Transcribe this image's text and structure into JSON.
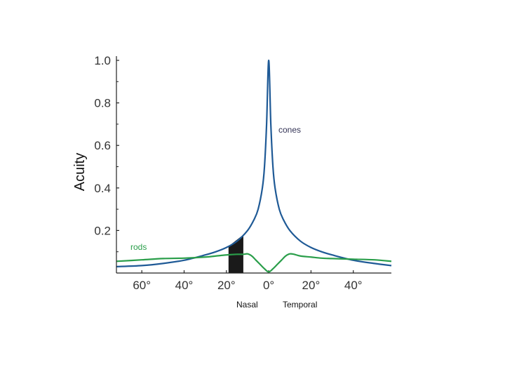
{
  "chart_data": {
    "type": "line",
    "ylabel": "Acuity",
    "xlabel": "",
    "ylim": [
      0,
      1.0
    ],
    "xlim": [
      -72,
      58
    ],
    "y_ticks": [
      {
        "value": 1.0,
        "label": "1.0"
      },
      {
        "value": 0.8,
        "label": "0.8"
      },
      {
        "value": 0.6,
        "label": "0.6"
      },
      {
        "value": 0.4,
        "label": "0.4"
      },
      {
        "value": 0.2,
        "label": "0.2"
      }
    ],
    "x_ticks": [
      {
        "value": -60,
        "label": "60°"
      },
      {
        "value": -40,
        "label": "40°"
      },
      {
        "value": -20,
        "label": "20°"
      },
      {
        "value": 0,
        "label": "0°"
      },
      {
        "value": 20,
        "label": "20°"
      },
      {
        "value": 40,
        "label": "40°"
      }
    ],
    "series": [
      {
        "name": "cones",
        "color": "#1f5a96",
        "x": [
          -72,
          -60,
          -50,
          -40,
          -30,
          -25,
          -20,
          -15,
          -10,
          -7,
          -5,
          -3,
          -2,
          -1,
          0,
          1,
          2,
          3,
          5,
          7,
          10,
          15,
          20,
          25,
          30,
          40,
          50,
          58
        ],
        "y": [
          0.03,
          0.035,
          0.045,
          0.06,
          0.085,
          0.1,
          0.12,
          0.15,
          0.2,
          0.25,
          0.3,
          0.4,
          0.5,
          0.7,
          1.0,
          0.7,
          0.5,
          0.4,
          0.3,
          0.25,
          0.2,
          0.15,
          0.12,
          0.1,
          0.085,
          0.06,
          0.045,
          0.035
        ]
      },
      {
        "name": "rods",
        "color": "#2a9e4a",
        "x": [
          -72,
          -60,
          -50,
          -40,
          -30,
          -25,
          -20,
          -15,
          -12,
          -10,
          -8,
          -6,
          -4,
          -2,
          0,
          2,
          4,
          6,
          8,
          10,
          12,
          15,
          20,
          25,
          30,
          40,
          50,
          58
        ],
        "y": [
          0.055,
          0.062,
          0.068,
          0.07,
          0.075,
          0.08,
          0.085,
          0.088,
          0.088,
          0.09,
          0.08,
          0.06,
          0.04,
          0.02,
          0.005,
          0.02,
          0.04,
          0.06,
          0.08,
          0.09,
          0.088,
          0.08,
          0.075,
          0.07,
          0.068,
          0.065,
          0.062,
          0.055
        ]
      }
    ],
    "blind_spot": {
      "x_start": -19,
      "x_end": -12,
      "color": "#1a1a1a"
    },
    "annotations": {
      "cones": {
        "text": "cones",
        "color": "#333355"
      },
      "rods": {
        "text": "rods",
        "color": "#2a9e4a"
      },
      "nasal": {
        "text": "Nasal",
        "color": "#111111"
      },
      "temporal": {
        "text": "Temporal",
        "color": "#111111"
      }
    },
    "axis_color": "#222222",
    "grid": false
  }
}
